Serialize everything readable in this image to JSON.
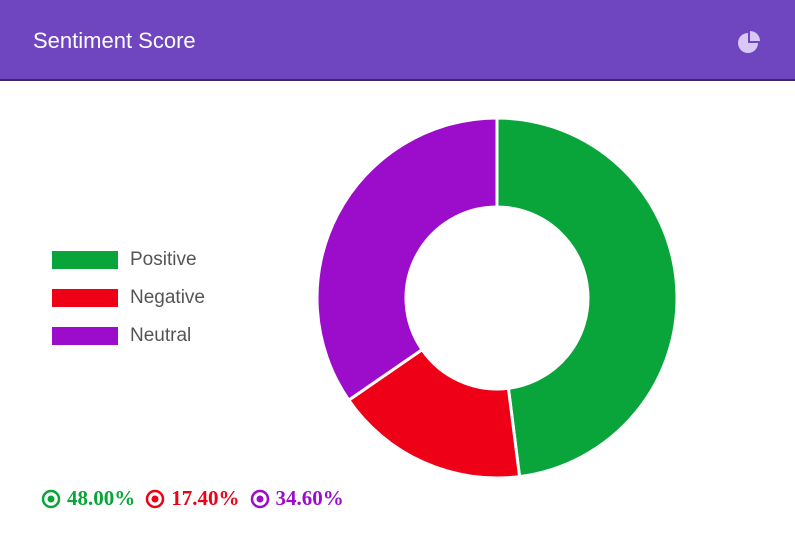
{
  "header": {
    "title": "Sentiment Score"
  },
  "chart_data": {
    "type": "doughnut",
    "categories": [
      "Positive",
      "Negative",
      "Neutral"
    ],
    "values": [
      48,
      17.4,
      34.6
    ],
    "value_labels": [
      "48.00%",
      "17.40%",
      "34.60%"
    ],
    "colors": [
      "#09a43a",
      "#ee0017",
      "#9b0ccb"
    ],
    "legend": "left"
  }
}
